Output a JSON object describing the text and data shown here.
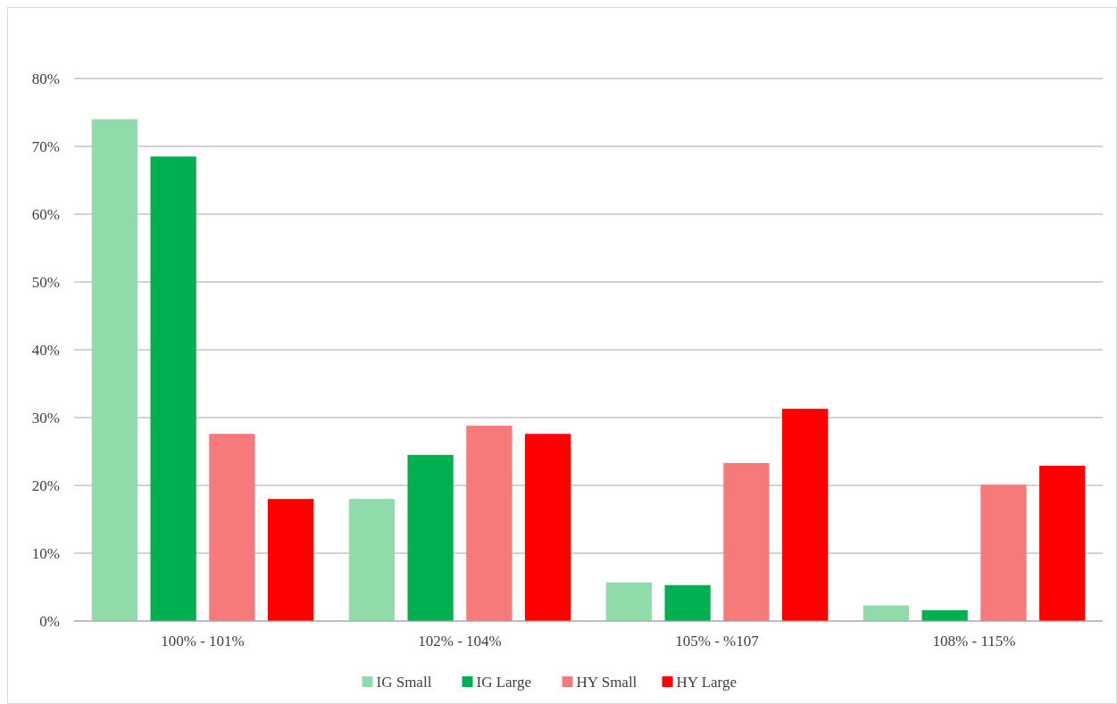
{
  "chart_data": {
    "type": "bar",
    "categories": [
      "100% - 101%",
      "102% - 104%",
      "105% - %107",
      "108% - 115%"
    ],
    "series": [
      {
        "name": "IG Small",
        "color": "#8fdcaa",
        "values": [
          74.0,
          18.0,
          5.7,
          2.3
        ]
      },
      {
        "name": "IG Large",
        "color": "#00b050",
        "values": [
          68.5,
          24.5,
          5.3,
          1.6
        ]
      },
      {
        "name": "HY Small",
        "color": "#f77a7a",
        "values": [
          27.6,
          28.8,
          23.3,
          20.1
        ]
      },
      {
        "name": "HY Large",
        "color": "#ff0000",
        "values": [
          18.0,
          27.6,
          31.3,
          22.9
        ]
      }
    ],
    "ylim": [
      0,
      80
    ],
    "yticks": [
      {
        "value": 0,
        "label": "0%"
      },
      {
        "value": 10,
        "label": "10%"
      },
      {
        "value": 20,
        "label": "20%"
      },
      {
        "value": 30,
        "label": "30%"
      },
      {
        "value": 40,
        "label": "40%"
      },
      {
        "value": 50,
        "label": "50%"
      },
      {
        "value": 60,
        "label": "60%"
      },
      {
        "value": 70,
        "label": "70%"
      },
      {
        "value": 80,
        "label": "80%"
      }
    ],
    "grid": "y",
    "legend": "bottom"
  }
}
